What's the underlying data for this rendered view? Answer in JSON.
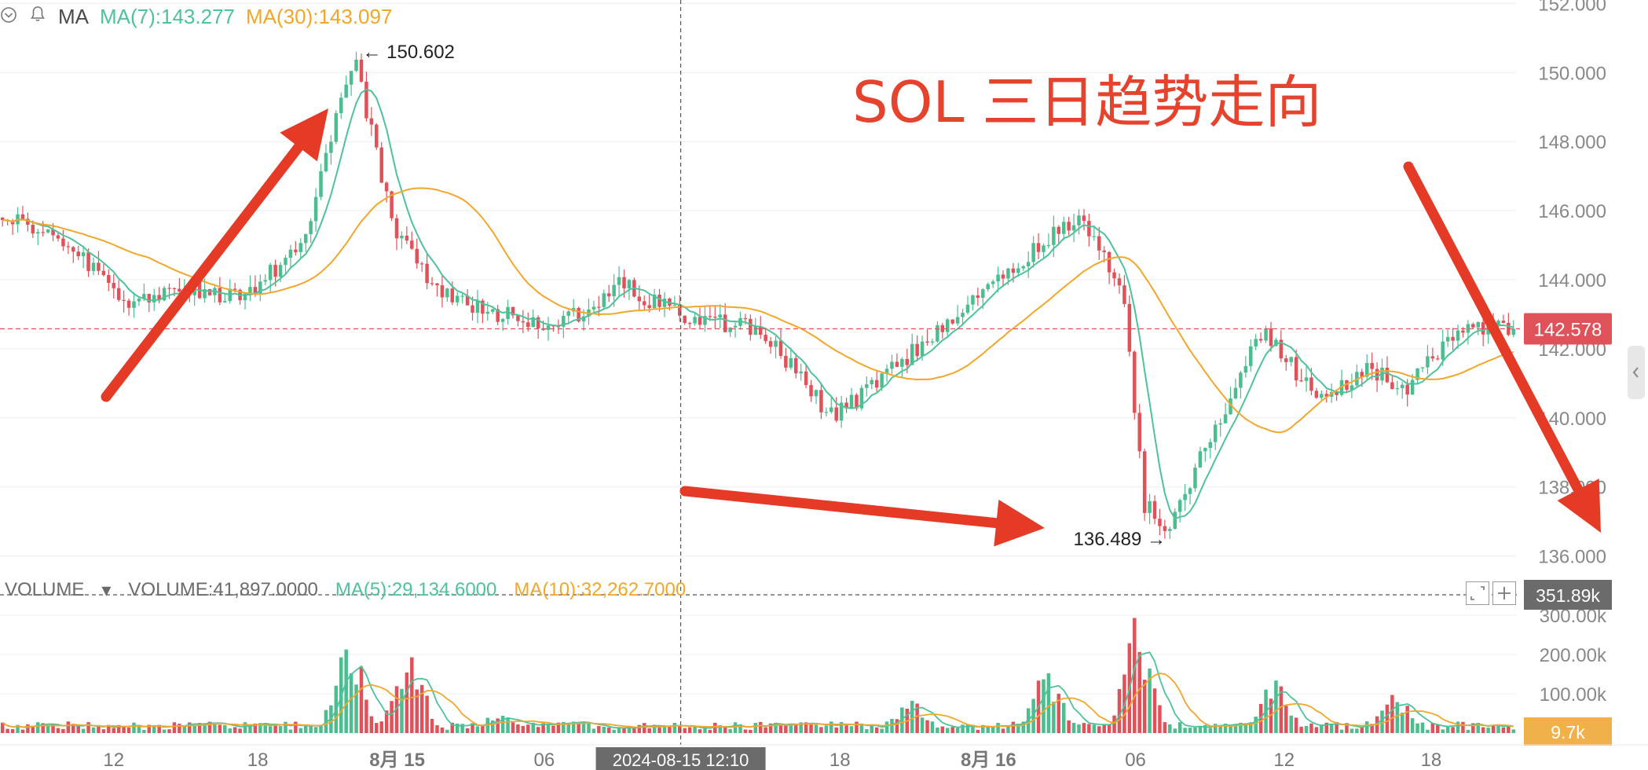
{
  "legend": {
    "ma_label": "MA",
    "ma7": "MA(7):143.277",
    "ma30": "MA(30):143.097"
  },
  "volume_legend": {
    "title": "VOLUME",
    "volume": "VOLUME:41,897.0000",
    "ma5": "MA(5):29,134.6000",
    "ma10": "MA(10):32,262.7000"
  },
  "annotations": {
    "headline": "SOL 三日趋势走向",
    "high_label": "← 150.602",
    "low_label": "136.489 →"
  },
  "badges": {
    "last_price": "142.578",
    "crosshair_volume": "351.89k",
    "current_volume": "9.7k",
    "crosshair_time": "2024-08-15 12:10"
  },
  "colors": {
    "up": "#4bbd8f",
    "down": "#e0525a",
    "ma7": "#4ec29a",
    "ma30": "#f2a72c",
    "headline": "#e5432d",
    "arrow": "#e53a26"
  },
  "chart_data": {
    "type": "candlestick",
    "symbol": "SOL",
    "price_axis": {
      "ticks": [
        "152.000",
        "150.000",
        "148.000",
        "146.000",
        "144.000",
        "142.000",
        "140.000",
        "138.000",
        "136.000"
      ],
      "range": [
        135.9,
        152.1
      ]
    },
    "volume_axis": {
      "ticks": [
        "300.00k",
        "200.00k",
        "100.00k"
      ],
      "range": [
        0,
        351.89
      ]
    },
    "time_axis": {
      "ticks": [
        "12",
        "18",
        "8月 15",
        "06",
        "18",
        "8月 16",
        "06",
        "12",
        "18"
      ]
    },
    "price_path": [
      {
        "t": 0,
        "p": 145.8
      },
      {
        "t": 0.04,
        "p": 145.2
      },
      {
        "t": 0.08,
        "p": 143.4
      },
      {
        "t": 0.12,
        "p": 143.8
      },
      {
        "t": 0.16,
        "p": 143.5
      },
      {
        "t": 0.2,
        "p": 145.0
      },
      {
        "t": 0.22,
        "p": 148.5
      },
      {
        "t": 0.235,
        "p": 150.2
      },
      {
        "t": 0.26,
        "p": 145.5
      },
      {
        "t": 0.29,
        "p": 143.6
      },
      {
        "t": 0.33,
        "p": 143.0
      },
      {
        "t": 0.37,
        "p": 142.7
      },
      {
        "t": 0.41,
        "p": 143.9
      },
      {
        "t": 0.45,
        "p": 142.9
      },
      {
        "t": 0.5,
        "p": 142.6
      },
      {
        "t": 0.55,
        "p": 140.0
      },
      {
        "t": 0.6,
        "p": 141.8
      },
      {
        "t": 0.64,
        "p": 143.5
      },
      {
        "t": 0.67,
        "p": 144.5
      },
      {
        "t": 0.71,
        "p": 145.8
      },
      {
        "t": 0.74,
        "p": 143.8
      },
      {
        "t": 0.755,
        "p": 137.5
      },
      {
        "t": 0.77,
        "p": 136.8
      },
      {
        "t": 0.79,
        "p": 138.6
      },
      {
        "t": 0.81,
        "p": 140.5
      },
      {
        "t": 0.82,
        "p": 141.6
      },
      {
        "t": 0.835,
        "p": 142.4
      },
      {
        "t": 0.87,
        "p": 140.5
      },
      {
        "t": 0.9,
        "p": 141.4
      },
      {
        "t": 0.93,
        "p": 140.9
      },
      {
        "t": 0.96,
        "p": 142.6
      },
      {
        "t": 1.0,
        "p": 142.58
      }
    ],
    "extremes": {
      "high": 150.602,
      "low": 136.489
    },
    "last_price": 142.578,
    "ma7_last": 143.277,
    "ma30_last": 143.097,
    "volume_spikes": [
      {
        "t": 0.23,
        "v": 290
      },
      {
        "t": 0.27,
        "v": 250
      },
      {
        "t": 0.33,
        "v": 70
      },
      {
        "t": 0.6,
        "v": 105
      },
      {
        "t": 0.69,
        "v": 185
      },
      {
        "t": 0.75,
        "v": 320
      },
      {
        "t": 0.84,
        "v": 160
      },
      {
        "t": 0.92,
        "v": 120
      }
    ]
  }
}
